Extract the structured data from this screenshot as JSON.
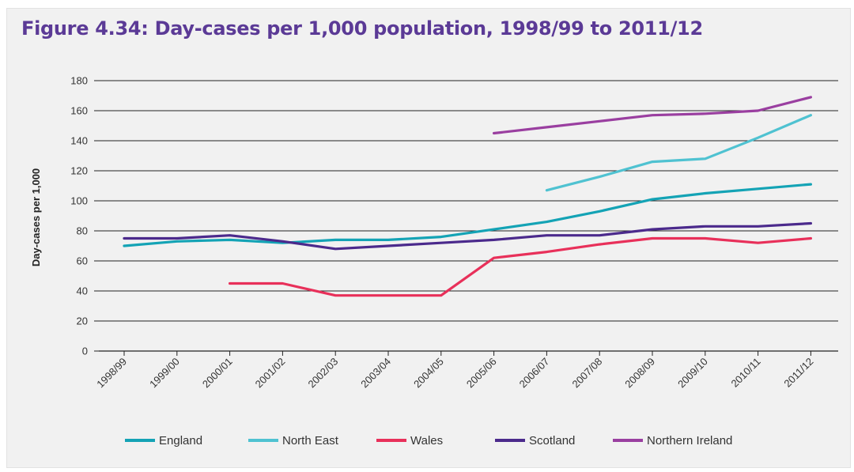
{
  "chart_data": {
    "type": "line",
    "title": "Figure 4.34: Day-cases per 1,000 population, 1998/99 to 2011/12",
    "ylabel": "Day-cases per 1,000",
    "xlabel": "",
    "ylim": [
      0,
      180
    ],
    "yticks": [
      "0",
      "20",
      "40",
      "60",
      "80",
      "100",
      "120",
      "140",
      "160",
      "180"
    ],
    "categories": [
      "1998/99",
      "1999/00",
      "2000/01",
      "2001/02",
      "2002/03",
      "2003/04",
      "2004/05",
      "2005/06",
      "2006/07",
      "2007/08",
      "2008/09",
      "2009/10",
      "2010/11",
      "2011/12"
    ],
    "grid": "horizontal",
    "legend_position": "bottom",
    "series": [
      {
        "name": "England",
        "color": "#14a3b5",
        "values": [
          70,
          73,
          74,
          72,
          74,
          74,
          76,
          81,
          86,
          93,
          101,
          105,
          108,
          111
        ]
      },
      {
        "name": "North East",
        "color": "#4fc2d1",
        "values": [
          null,
          null,
          null,
          null,
          null,
          null,
          null,
          null,
          107,
          116,
          126,
          128,
          142,
          157
        ]
      },
      {
        "name": "Wales",
        "color": "#e8305a",
        "values": [
          null,
          null,
          45,
          45,
          37,
          37,
          37,
          62,
          66,
          71,
          75,
          75,
          72,
          75
        ]
      },
      {
        "name": "Scotland",
        "color": "#4b2a8c",
        "values": [
          75,
          75,
          77,
          73,
          68,
          70,
          72,
          74,
          77,
          77,
          81,
          83,
          83,
          85
        ]
      },
      {
        "name": "Northern Ireland",
        "color": "#9a3fa0",
        "values": [
          null,
          null,
          null,
          null,
          null,
          null,
          null,
          145,
          149,
          153,
          157,
          158,
          160,
          169
        ]
      }
    ]
  }
}
